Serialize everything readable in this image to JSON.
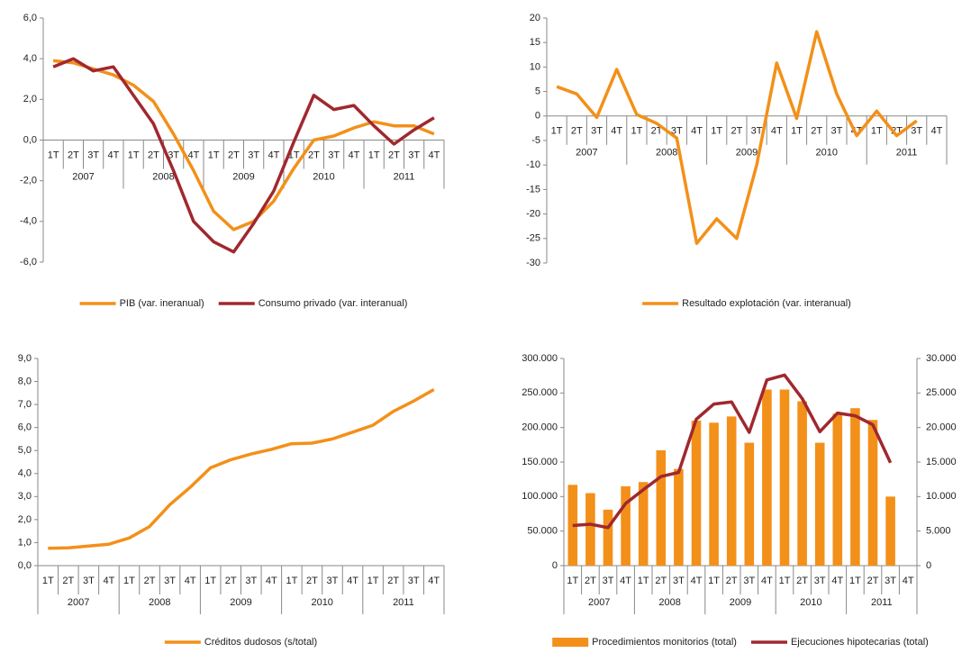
{
  "chart_data": [
    {
      "type": "line",
      "categories": [
        "1T",
        "2T",
        "3T",
        "4T",
        "1T",
        "2T",
        "3T",
        "4T",
        "1T",
        "2T",
        "3T",
        "4T",
        "1T",
        "2T",
        "3T",
        "4T",
        "1T",
        "2T",
        "3T",
        "4T"
      ],
      "year_groups": [
        "2007",
        "2008",
        "2009",
        "2010",
        "2011"
      ],
      "ylim": [
        -6,
        6
      ],
      "yticks": [
        {
          "value": -6,
          "label": "-6,0"
        },
        {
          "value": -4,
          "label": "-4,0"
        },
        {
          "value": -2,
          "label": "-2,0"
        },
        {
          "value": 0,
          "label": "0,0"
        },
        {
          "value": 2,
          "label": "2,0"
        },
        {
          "value": 4,
          "label": "4,0"
        },
        {
          "value": 6,
          "label": "6,0"
        }
      ],
      "legend": "bottom",
      "series": [
        {
          "name": "PIB (var. ineranual)",
          "color": "#f39019",
          "values": [
            3.9,
            3.8,
            3.5,
            3.2,
            2.7,
            1.9,
            0.3,
            -1.5,
            -3.5,
            -4.4,
            -4.0,
            -3.0,
            -1.4,
            0.0,
            0.2,
            0.6,
            0.9,
            0.7,
            0.7,
            0.3
          ]
        },
        {
          "name": "Consumo privado (var. interanual)",
          "color": "#a0282e",
          "values": [
            3.6,
            4.0,
            3.4,
            3.6,
            2.2,
            0.8,
            -1.5,
            -4.0,
            -5.0,
            -5.5,
            -4.1,
            -2.5,
            -0.1,
            2.2,
            1.5,
            1.7,
            0.7,
            -0.2,
            0.5,
            1.1
          ]
        }
      ]
    },
    {
      "type": "line",
      "categories": [
        "1T",
        "2T",
        "3T",
        "4T",
        "1T",
        "2T",
        "3T",
        "4T",
        "1T",
        "2T",
        "3T",
        "4T",
        "1T",
        "2T",
        "3T",
        "4T",
        "1T",
        "2T",
        "3T",
        "4T"
      ],
      "year_groups": [
        "2007",
        "2008",
        "2009",
        "2010",
        "2011"
      ],
      "ylim": [
        -30,
        20
      ],
      "yticks": [
        -30,
        -25,
        -20,
        -15,
        -10,
        -5,
        0,
        5,
        10,
        15,
        20
      ],
      "legend": "bottom",
      "series": [
        {
          "name": "Resultado explotación (var. interanual)",
          "color": "#f39019",
          "values": [
            6,
            4.5,
            -0.3,
            9.5,
            0.3,
            -1.5,
            -4.5,
            -26,
            -21,
            -25,
            -10,
            10.8,
            -0.5,
            17.2,
            4.5,
            -4,
            1,
            -4,
            -1,
            null
          ]
        }
      ]
    },
    {
      "type": "line",
      "categories": [
        "1T",
        "2T",
        "3T",
        "4T",
        "1T",
        "2T",
        "3T",
        "4T",
        "1T",
        "2T",
        "3T",
        "4T",
        "1T",
        "2T",
        "3T",
        "4T",
        "1T",
        "2T",
        "3T",
        "4T"
      ],
      "year_groups": [
        "2007",
        "2008",
        "2009",
        "2010",
        "2011"
      ],
      "ylim": [
        0,
        9
      ],
      "yticks": [
        {
          "value": 0,
          "label": "0,0"
        },
        {
          "value": 1,
          "label": "1,0"
        },
        {
          "value": 2,
          "label": "2,0"
        },
        {
          "value": 3,
          "label": "3,0"
        },
        {
          "value": 4,
          "label": "4,0"
        },
        {
          "value": 5,
          "label": "5,0"
        },
        {
          "value": 6,
          "label": "6,0"
        },
        {
          "value": 7,
          "label": "7,0"
        },
        {
          "value": 8,
          "label": "8,0"
        },
        {
          "value": 9,
          "label": "9,0"
        }
      ],
      "legend": "bottom",
      "series": [
        {
          "name": "Créditos dudosos (s/total)",
          "color": "#f39019",
          "values": [
            0.75,
            0.77,
            0.85,
            0.93,
            1.2,
            1.7,
            2.65,
            3.4,
            4.25,
            4.6,
            4.85,
            5.05,
            5.3,
            5.32,
            5.5,
            5.8,
            6.1,
            6.7,
            7.15,
            7.65
          ]
        }
      ]
    },
    {
      "type": "bar_line",
      "categories": [
        "1T",
        "2T",
        "3T",
        "4T",
        "1T",
        "2T",
        "3T",
        "4T",
        "1T",
        "2T",
        "3T",
        "4T",
        "1T",
        "2T",
        "3T",
        "4T",
        "1T",
        "2T",
        "3T",
        "4T"
      ],
      "year_groups": [
        "2007",
        "2008",
        "2009",
        "2010",
        "2011"
      ],
      "ylim": [
        0,
        300000
      ],
      "yticks": [
        0,
        {
          "value": 50000,
          "label": "50.000"
        },
        {
          "value": 100000,
          "label": "100.000"
        },
        {
          "value": 150000,
          "label": "150.000"
        },
        {
          "value": 200000,
          "label": "200.000"
        },
        {
          "value": 250000,
          "label": "250.000"
        },
        {
          "value": 300000,
          "label": "300.000"
        }
      ],
      "y2lim": [
        0,
        30000
      ],
      "y2ticks": [
        0,
        {
          "value": 5000,
          "label": "5.000"
        },
        {
          "value": 10000,
          "label": "10.000"
        },
        {
          "value": 15000,
          "label": "15.000"
        },
        {
          "value": 20000,
          "label": "20.000"
        },
        {
          "value": 25000,
          "label": "25.000"
        },
        {
          "value": 30000,
          "label": "30.000"
        }
      ],
      "legend": "bottom",
      "series": [
        {
          "name": "Procedimientos monitorios (total)",
          "type": "bar",
          "color": "#f39019",
          "values": [
            117000,
            105000,
            81000,
            115000,
            121000,
            167000,
            140000,
            210000,
            207000,
            216000,
            178000,
            255000,
            255000,
            238000,
            178000,
            220000,
            228000,
            211000,
            100000,
            null
          ]
        },
        {
          "name": "Ejecuciones hipotecarias (total)",
          "type": "line",
          "axis": "y2",
          "color": "#a0282e",
          "values": [
            5800,
            6000,
            5500,
            9000,
            11000,
            12900,
            13500,
            21200,
            23400,
            23700,
            19300,
            26900,
            27600,
            24200,
            19400,
            22100,
            21700,
            20400,
            14900,
            null
          ]
        }
      ]
    }
  ]
}
